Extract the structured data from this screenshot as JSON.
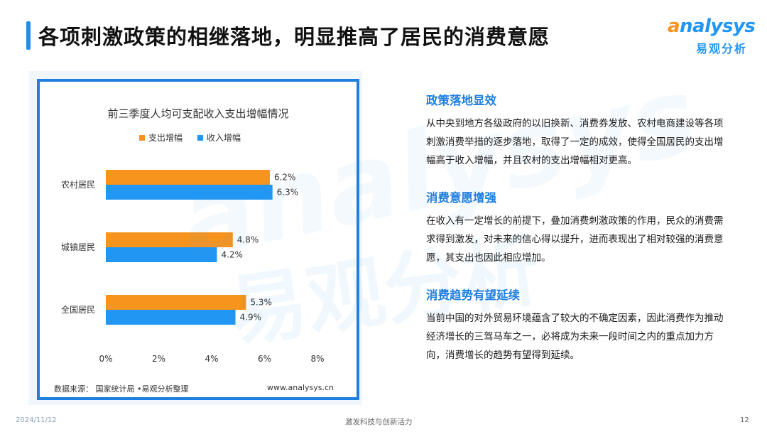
{
  "page": {
    "title": "各项刺激政策的相继落地，明显推高了居民的消费意愿"
  },
  "logo": {
    "wordmark": "analysys",
    "subtitle": "易观分析"
  },
  "watermark": {
    "text_en": "analysys",
    "text_cn": "易观分析"
  },
  "chart_data": {
    "type": "bar",
    "orientation": "horizontal",
    "title": "前三季度人均可支配收入支出增幅情况",
    "categories": [
      "农村居民",
      "城镇居民",
      "全国居民"
    ],
    "series": [
      {
        "name": "支出增幅",
        "color": "#f7941d",
        "values": [
          6.2,
          4.8,
          5.3
        ],
        "labels": [
          "6.2%",
          "4.8%",
          "5.3%"
        ]
      },
      {
        "name": "收入增幅",
        "color": "#2196f3",
        "values": [
          6.3,
          4.2,
          4.9
        ],
        "labels": [
          "6.3%",
          "4.2%",
          "4.9%"
        ]
      }
    ],
    "xlim": [
      0,
      8
    ],
    "xticks": [
      0,
      2,
      4,
      6,
      8
    ],
    "xtick_labels": [
      "0%",
      "2%",
      "4%",
      "6%",
      "8%"
    ],
    "legend_position": "top",
    "grid": false
  },
  "source": {
    "left": "数据来源：  国家统计局 •易观分析整理",
    "right": "www.analysys.cn"
  },
  "sections": [
    {
      "heading": "政策落地显效",
      "body": "从中央到地方各级政府的以旧换新、消费券发放、农村电商建设等各项刺激消费举措的逐步落地，取得了一定的成效，使得全国居民的支出增幅高于收入增幅，并且农村的支出增幅相对更高。"
    },
    {
      "heading": "消费意愿增强",
      "body": "在收入有一定增长的前提下，叠加消费刺激政策的作用，民众的消费需求得到激发，对未来的信心得以提升，进而表现出了相对较强的消费意愿，其支出也因此相应增加。"
    },
    {
      "heading": "消费趋势有望延续",
      "body": "当前中国的对外贸易环境蕴含了较大的不确定因素，因此消费作为推动经济增长的三驾马车之一，必将成为未来一段时间之内的重点加力方向，消费增长的趋势有望得到延续。"
    }
  ],
  "footer": {
    "date": "2024/11/12",
    "center": "激发科技与创新活力",
    "page_number": "12"
  }
}
